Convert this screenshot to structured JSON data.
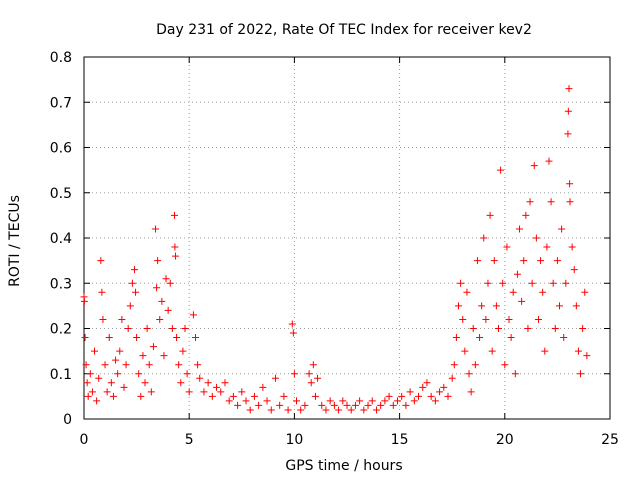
{
  "chart_data": {
    "type": "scatter",
    "title": "Day 231 of 2022, Rate Of TEC Index for receiver kev2",
    "xlabel": "GPS time / hours",
    "ylabel": "ROTI / TECUs",
    "xlim": [
      0,
      25
    ],
    "ylim": [
      0,
      0.8
    ],
    "xticks": [
      0,
      5,
      10,
      15,
      20,
      25
    ],
    "xtick_labels": [
      "0",
      "5",
      "10",
      "15",
      "20",
      "25"
    ],
    "yticks": [
      0,
      0.1,
      0.2,
      0.3,
      0.4,
      0.5,
      0.6,
      0.7,
      0.8
    ],
    "ytick_labels": [
      "0",
      "0.1",
      "0.2",
      "0.3",
      "0.4",
      "0.5",
      "0.6",
      "0.7",
      "0.8"
    ],
    "grid": true,
    "marker": "+",
    "color": "#ff0000",
    "series": [
      {
        "points": [
          [
            0.0,
            0.27
          ],
          [
            0.02,
            0.26
          ],
          [
            0.05,
            0.18
          ],
          [
            0.1,
            0.12
          ],
          [
            0.15,
            0.08
          ],
          [
            0.2,
            0.05
          ],
          [
            0.3,
            0.1
          ],
          [
            0.4,
            0.06
          ],
          [
            0.5,
            0.15
          ],
          [
            0.6,
            0.04
          ],
          [
            0.7,
            0.09
          ],
          [
            0.8,
            0.35
          ],
          [
            0.85,
            0.28
          ],
          [
            0.9,
            0.22
          ],
          [
            1.0,
            0.12
          ],
          [
            1.1,
            0.06
          ],
          [
            1.2,
            0.18
          ],
          [
            1.3,
            0.08
          ],
          [
            1.4,
            0.05
          ],
          [
            1.5,
            0.13
          ],
          [
            1.6,
            0.1
          ],
          [
            1.7,
            0.15
          ],
          [
            1.8,
            0.22
          ],
          [
            1.9,
            0.07
          ],
          [
            2.0,
            0.12
          ],
          [
            2.1,
            0.2
          ],
          [
            2.2,
            0.25
          ],
          [
            2.3,
            0.3
          ],
          [
            2.4,
            0.33
          ],
          [
            2.45,
            0.28
          ],
          [
            2.5,
            0.18
          ],
          [
            2.6,
            0.1
          ],
          [
            2.7,
            0.05
          ],
          [
            2.8,
            0.14
          ],
          [
            2.9,
            0.08
          ],
          [
            3.0,
            0.2
          ],
          [
            3.1,
            0.12
          ],
          [
            3.2,
            0.06
          ],
          [
            3.3,
            0.16
          ],
          [
            3.4,
            0.42
          ],
          [
            3.45,
            0.29
          ],
          [
            3.5,
            0.35
          ],
          [
            3.6,
            0.22
          ],
          [
            3.7,
            0.26
          ],
          [
            3.8,
            0.14
          ],
          [
            3.9,
            0.31
          ],
          [
            4.0,
            0.24
          ],
          [
            4.1,
            0.3
          ],
          [
            4.2,
            0.2
          ],
          [
            4.3,
            0.45
          ],
          [
            4.32,
            0.38
          ],
          [
            4.35,
            0.36
          ],
          [
            4.4,
            0.18
          ],
          [
            4.5,
            0.12
          ],
          [
            4.6,
            0.08
          ],
          [
            4.7,
            0.15
          ],
          [
            4.8,
            0.2
          ],
          [
            4.9,
            0.1
          ],
          [
            5.0,
            0.06
          ],
          [
            5.2,
            0.23
          ],
          [
            5.3,
            0.18
          ],
          [
            5.4,
            0.12
          ],
          [
            5.5,
            0.09
          ],
          [
            5.7,
            0.06
          ],
          [
            5.9,
            0.08
          ],
          [
            6.1,
            0.05
          ],
          [
            6.3,
            0.07
          ],
          [
            6.5,
            0.06
          ],
          [
            6.7,
            0.08
          ],
          [
            6.9,
            0.04
          ],
          [
            7.1,
            0.05
          ],
          [
            7.3,
            0.03
          ],
          [
            7.5,
            0.06
          ],
          [
            7.7,
            0.04
          ],
          [
            7.9,
            0.02
          ],
          [
            8.1,
            0.05
          ],
          [
            8.3,
            0.03
          ],
          [
            8.5,
            0.07
          ],
          [
            8.7,
            0.04
          ],
          [
            8.9,
            0.02
          ],
          [
            9.1,
            0.09
          ],
          [
            9.3,
            0.03
          ],
          [
            9.5,
            0.05
          ],
          [
            9.7,
            0.02
          ],
          [
            9.9,
            0.21
          ],
          [
            9.95,
            0.19
          ],
          [
            10.0,
            0.1
          ],
          [
            10.1,
            0.04
          ],
          [
            10.3,
            0.02
          ],
          [
            10.5,
            0.03
          ],
          [
            10.7,
            0.1
          ],
          [
            10.8,
            0.08
          ],
          [
            10.9,
            0.12
          ],
          [
            11.0,
            0.05
          ],
          [
            11.1,
            0.09
          ],
          [
            11.3,
            0.03
          ],
          [
            11.5,
            0.02
          ],
          [
            11.7,
            0.04
          ],
          [
            11.9,
            0.03
          ],
          [
            12.1,
            0.02
          ],
          [
            12.3,
            0.04
          ],
          [
            12.5,
            0.03
          ],
          [
            12.7,
            0.02
          ],
          [
            12.9,
            0.03
          ],
          [
            13.1,
            0.04
          ],
          [
            13.3,
            0.02
          ],
          [
            13.5,
            0.03
          ],
          [
            13.7,
            0.04
          ],
          [
            13.9,
            0.02
          ],
          [
            14.1,
            0.03
          ],
          [
            14.3,
            0.04
          ],
          [
            14.5,
            0.05
          ],
          [
            14.7,
            0.03
          ],
          [
            14.9,
            0.04
          ],
          [
            15.1,
            0.05
          ],
          [
            15.3,
            0.03
          ],
          [
            15.5,
            0.06
          ],
          [
            15.7,
            0.04
          ],
          [
            15.9,
            0.05
          ],
          [
            16.1,
            0.07
          ],
          [
            16.3,
            0.08
          ],
          [
            16.5,
            0.05
          ],
          [
            16.7,
            0.04
          ],
          [
            16.9,
            0.06
          ],
          [
            17.1,
            0.07
          ],
          [
            17.3,
            0.05
          ],
          [
            17.5,
            0.09
          ],
          [
            17.6,
            0.12
          ],
          [
            17.7,
            0.18
          ],
          [
            17.8,
            0.25
          ],
          [
            17.9,
            0.3
          ],
          [
            18.0,
            0.22
          ],
          [
            18.1,
            0.15
          ],
          [
            18.2,
            0.28
          ],
          [
            18.3,
            0.1
          ],
          [
            18.4,
            0.06
          ],
          [
            18.5,
            0.2
          ],
          [
            18.6,
            0.12
          ],
          [
            18.7,
            0.35
          ],
          [
            18.8,
            0.18
          ],
          [
            18.9,
            0.25
          ],
          [
            19.0,
            0.4
          ],
          [
            19.1,
            0.22
          ],
          [
            19.2,
            0.3
          ],
          [
            19.3,
            0.45
          ],
          [
            19.4,
            0.15
          ],
          [
            19.5,
            0.35
          ],
          [
            19.6,
            0.25
          ],
          [
            19.7,
            0.2
          ],
          [
            19.8,
            0.55
          ],
          [
            19.9,
            0.3
          ],
          [
            20.0,
            0.12
          ],
          [
            20.1,
            0.38
          ],
          [
            20.2,
            0.22
          ],
          [
            20.3,
            0.18
          ],
          [
            20.4,
            0.28
          ],
          [
            20.5,
            0.1
          ],
          [
            20.6,
            0.32
          ],
          [
            20.7,
            0.42
          ],
          [
            20.8,
            0.26
          ],
          [
            20.9,
            0.35
          ],
          [
            21.0,
            0.45
          ],
          [
            21.1,
            0.2
          ],
          [
            21.2,
            0.48
          ],
          [
            21.3,
            0.3
          ],
          [
            21.4,
            0.56
          ],
          [
            21.5,
            0.4
          ],
          [
            21.6,
            0.22
          ],
          [
            21.7,
            0.35
          ],
          [
            21.8,
            0.28
          ],
          [
            21.9,
            0.15
          ],
          [
            22.0,
            0.38
          ],
          [
            22.1,
            0.57
          ],
          [
            22.2,
            0.48
          ],
          [
            22.3,
            0.3
          ],
          [
            22.4,
            0.2
          ],
          [
            22.5,
            0.35
          ],
          [
            22.6,
            0.25
          ],
          [
            22.7,
            0.42
          ],
          [
            22.8,
            0.18
          ],
          [
            22.9,
            0.3
          ],
          [
            23.0,
            0.63
          ],
          [
            23.02,
            0.68
          ],
          [
            23.05,
            0.73
          ],
          [
            23.08,
            0.52
          ],
          [
            23.1,
            0.48
          ],
          [
            23.2,
            0.38
          ],
          [
            23.3,
            0.33
          ],
          [
            23.4,
            0.25
          ],
          [
            23.5,
            0.15
          ],
          [
            23.6,
            0.1
          ],
          [
            23.7,
            0.2
          ],
          [
            23.8,
            0.28
          ],
          [
            23.9,
            0.14
          ]
        ]
      }
    ]
  }
}
